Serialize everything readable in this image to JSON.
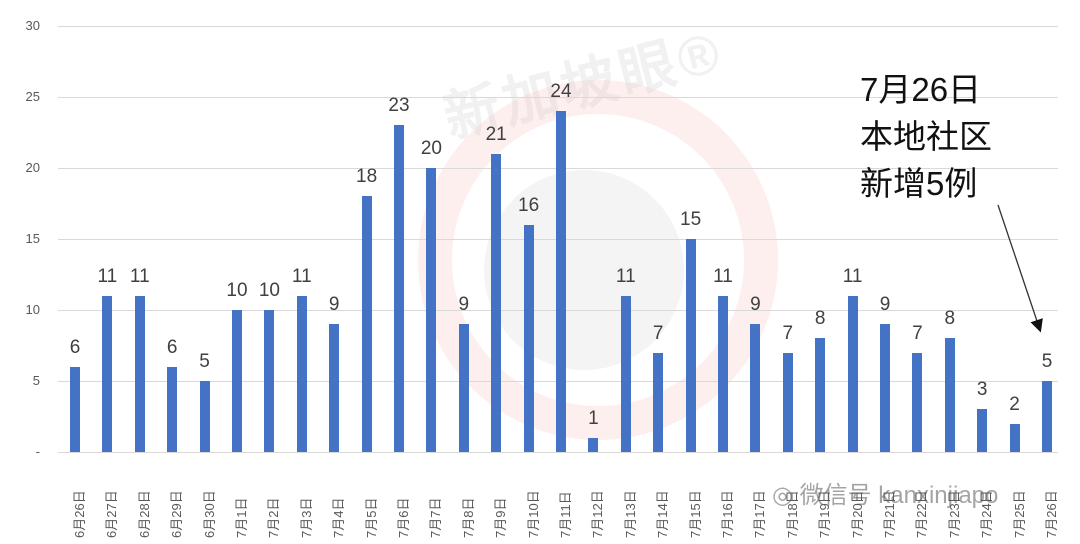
{
  "chart_data": {
    "type": "bar",
    "title": "",
    "xlabel": "",
    "ylabel": "",
    "ylim": [
      0,
      30
    ],
    "yticks": [
      "-",
      "5",
      "10",
      "15",
      "20",
      "25",
      "30"
    ],
    "grid": true,
    "legend": null,
    "categories": [
      "6月26日",
      "6月27日",
      "6月28日",
      "6月29日",
      "6月30日",
      "7月1日",
      "7月2日",
      "7月3日",
      "7月4日",
      "7月5日",
      "7月6日",
      "7月7日",
      "7月8日",
      "7月9日",
      "7月10日",
      "7月11日",
      "7月12日",
      "7月13日",
      "7月14日",
      "7月15日",
      "7月16日",
      "7月17日",
      "7月18日",
      "7月19日",
      "7月20日",
      "7月21日",
      "7月22日",
      "7月23日",
      "7月24日",
      "7月25日",
      "7月26日"
    ],
    "values": [
      6,
      11,
      11,
      6,
      5,
      10,
      10,
      11,
      9,
      18,
      23,
      20,
      9,
      21,
      16,
      24,
      1,
      11,
      7,
      15,
      11,
      9,
      7,
      8,
      11,
      9,
      7,
      8,
      3,
      2,
      5
    ],
    "bar_color": "#4472c4",
    "annotations": [
      {
        "text": [
          "7月26日",
          "本地社区",
          "新增5例"
        ],
        "points_to": "7月26日"
      }
    ]
  },
  "watermark": {
    "brand": "新加坡眼®",
    "wechat": "微信号 kanxinjiapo"
  }
}
